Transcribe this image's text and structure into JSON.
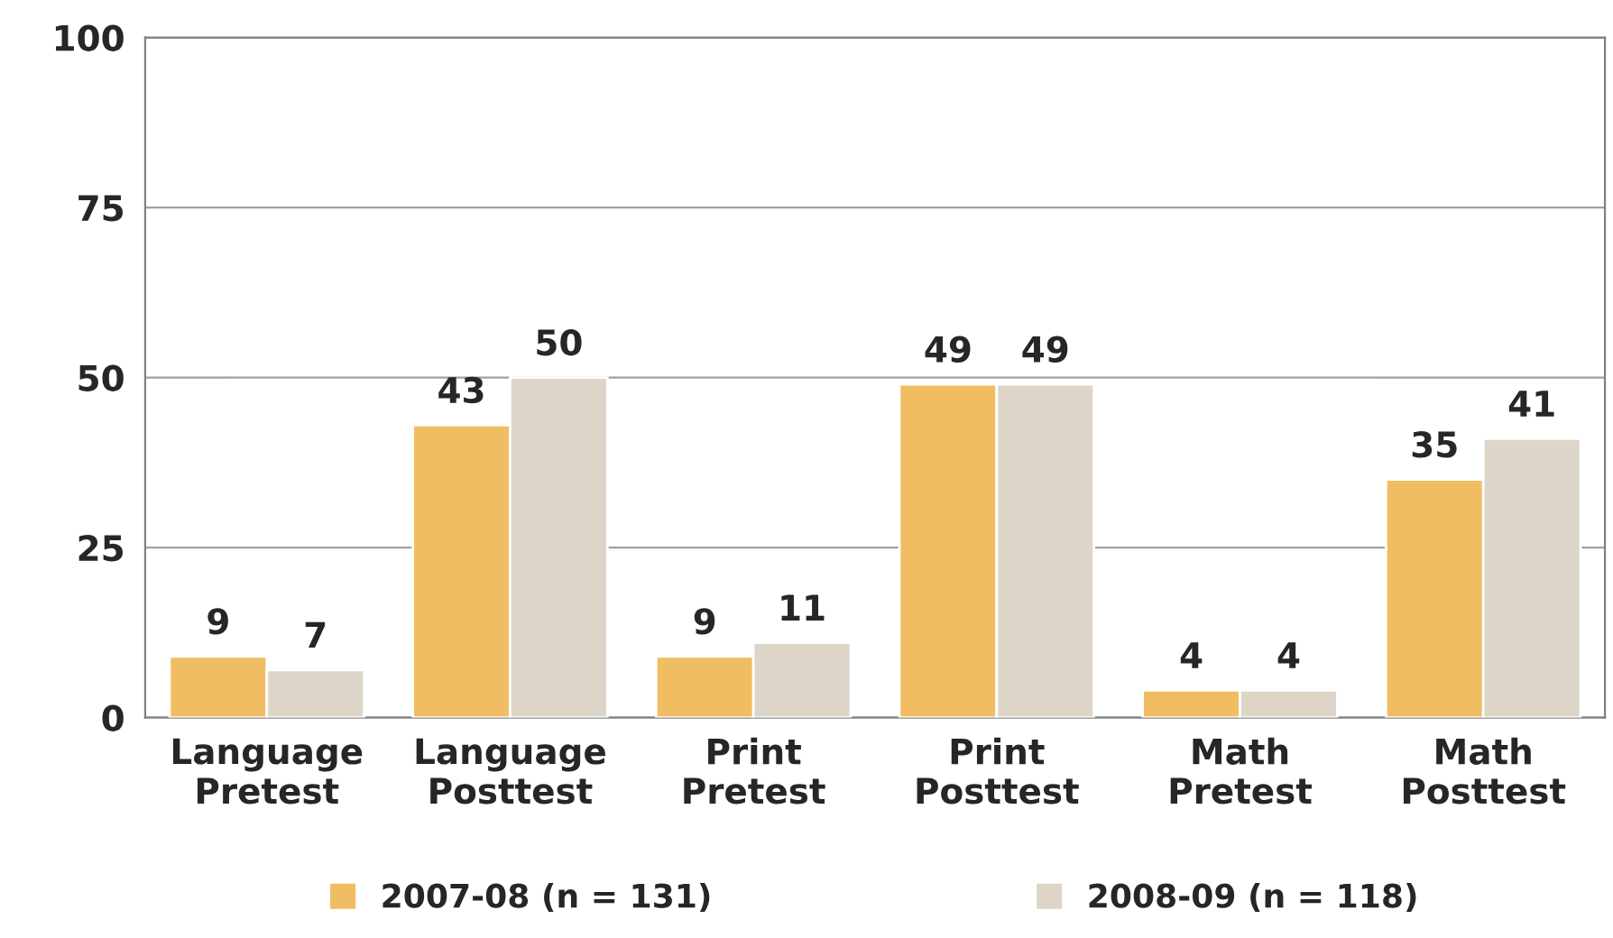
{
  "chart_data": {
    "type": "bar",
    "categories": [
      "Language\nPretest",
      "Language\nPosttest",
      "Print\nPretest",
      "Print\nPosttest",
      "Math\nPretest",
      "Math\nPosttest"
    ],
    "series": [
      {
        "name": "2007-08 (n = 131)",
        "color": "#f0bd62",
        "values": [
          9,
          43,
          9,
          49,
          4,
          35
        ]
      },
      {
        "name": "2008-09 (n = 118)",
        "color": "#ddd6c8",
        "values": [
          7,
          50,
          11,
          49,
          4,
          41
        ]
      }
    ],
    "ylim": [
      0,
      100
    ],
    "yticks": [
      0,
      25,
      50,
      75,
      100
    ],
    "grid": "y",
    "legend": "bottom",
    "data_labels": true
  }
}
